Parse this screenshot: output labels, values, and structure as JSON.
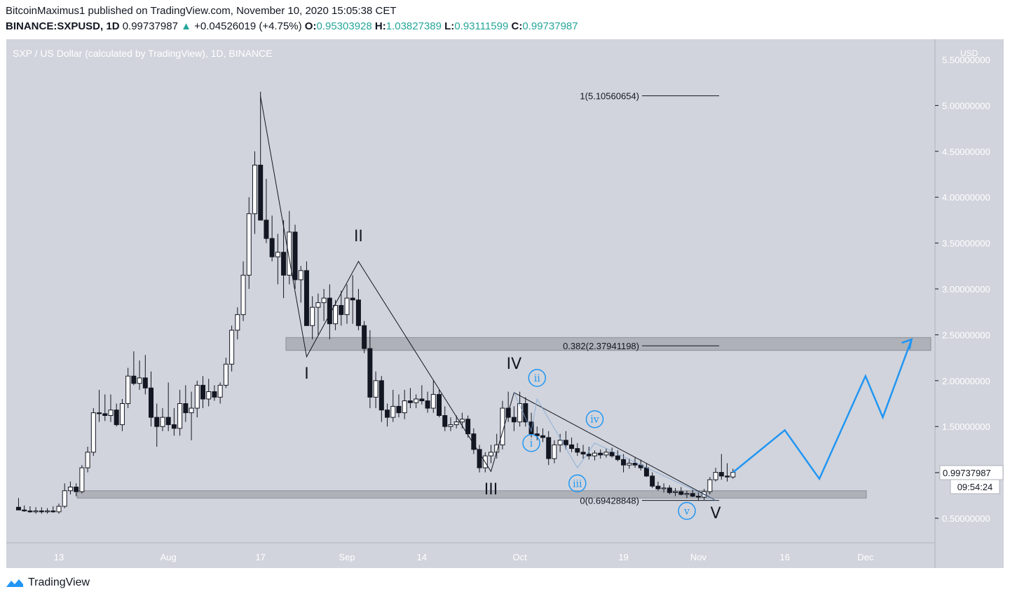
{
  "header": {
    "line1": "BitcoinMaximus1 published on TradingView.com, November 10, 2020 15:05:38 CET",
    "symbol": "BINANCE:SXPUSD, 1D",
    "last": "0.99737987",
    "change": "+0.04526019 (+4.75%)",
    "o_label": "O:",
    "o_value": "0.95303928",
    "h_label": "H:",
    "h_value": "1.03827389",
    "l_label": "L:",
    "l_value": "0.93111599",
    "c_label": "C:",
    "c_value": "0.99737987"
  },
  "footer": {
    "brand": "TradingView",
    "logo_icon": "tradingview-logo-icon"
  },
  "chart_data": {
    "type": "candlestick",
    "title": "SXP / US Dollar (calculated by TradingView), 1D, BINANCE",
    "currency": "USD",
    "y_ticks": [
      "5.00000000",
      "4.50000000",
      "4.00000000",
      "3.50000000",
      "3.00000000",
      "2.50000000",
      "2.00000000",
      "1.50000000",
      "0.50000000"
    ],
    "y_tick_values": [
      5.0,
      4.5,
      4.0,
      3.5,
      3.0,
      2.5,
      2.0,
      1.5,
      0.5
    ],
    "y_top_partial": "5.50000000",
    "ylim": [
      0.22,
      5.55
    ],
    "x_ticks": [
      {
        "label": "13",
        "day": 13
      },
      {
        "label": "Aug",
        "day": 32
      },
      {
        "label": "17",
        "day": 48
      },
      {
        "label": "Sep",
        "day": 63
      },
      {
        "label": "14",
        "day": 76
      },
      {
        "label": "Oct",
        "day": 93
      },
      {
        "label": "19",
        "day": 111
      },
      {
        "label": "Nov",
        "day": 124
      },
      {
        "label": "16",
        "day": 139
      },
      {
        "label": "Dec",
        "day": 153
      }
    ],
    "x_range": [
      4,
      162
    ],
    "date_axis_note_day": "day 1 = Jul 1, 2020",
    "price_label": "0.99737987",
    "price_value": 0.99737987,
    "countdown": "09:54:24",
    "candles": [
      [
        6,
        0.62,
        0.72,
        0.6,
        0.59
      ],
      [
        7,
        0.59,
        0.64,
        0.57,
        0.58
      ],
      [
        8,
        0.58,
        0.63,
        0.56,
        0.57
      ],
      [
        9,
        0.57,
        0.62,
        0.55,
        0.58
      ],
      [
        10,
        0.58,
        0.62,
        0.55,
        0.57
      ],
      [
        11,
        0.57,
        0.61,
        0.55,
        0.58
      ],
      [
        12,
        0.58,
        0.63,
        0.56,
        0.57
      ],
      [
        13,
        0.57,
        0.66,
        0.55,
        0.63
      ],
      [
        14,
        0.63,
        0.88,
        0.61,
        0.8
      ],
      [
        15,
        0.8,
        0.9,
        0.76,
        0.84
      ],
      [
        16,
        0.84,
        0.88,
        0.74,
        0.79
      ],
      [
        17,
        0.79,
        1.08,
        0.77,
        1.05
      ],
      [
        18,
        1.05,
        1.28,
        1.0,
        1.22
      ],
      [
        19,
        1.22,
        1.7,
        1.18,
        1.65
      ],
      [
        20,
        1.65,
        1.9,
        1.55,
        1.64
      ],
      [
        21,
        1.64,
        1.85,
        1.56,
        1.62
      ],
      [
        22,
        1.62,
        1.85,
        1.55,
        1.68
      ],
      [
        23,
        1.68,
        1.75,
        1.5,
        1.52
      ],
      [
        24,
        1.52,
        1.8,
        1.45,
        1.75
      ],
      [
        25,
        1.75,
        2.14,
        1.7,
        2.05
      ],
      [
        26,
        2.05,
        2.32,
        1.95,
        1.97
      ],
      [
        27,
        1.97,
        2.22,
        1.9,
        2.03
      ],
      [
        28,
        2.03,
        2.28,
        1.85,
        1.92
      ],
      [
        29,
        1.92,
        2.1,
        1.5,
        1.6
      ],
      [
        30,
        1.6,
        1.75,
        1.28,
        1.5
      ],
      [
        31,
        1.5,
        1.7,
        1.45,
        1.6
      ],
      [
        32,
        1.6,
        1.98,
        1.45,
        1.52
      ],
      [
        33,
        1.52,
        1.7,
        1.4,
        1.48
      ],
      [
        34,
        1.48,
        1.9,
        1.4,
        1.75
      ],
      [
        35,
        1.75,
        1.95,
        1.55,
        1.65
      ],
      [
        36,
        1.65,
        1.88,
        1.35,
        1.7
      ],
      [
        37,
        1.7,
        2.0,
        1.6,
        1.95
      ],
      [
        38,
        1.95,
        2.05,
        1.7,
        1.8
      ],
      [
        39,
        1.8,
        2.02,
        1.72,
        1.88
      ],
      [
        40,
        1.88,
        1.95,
        1.78,
        1.82
      ],
      [
        41,
        1.82,
        1.98,
        1.75,
        1.95
      ],
      [
        42,
        1.95,
        2.25,
        1.92,
        2.18
      ],
      [
        43,
        2.18,
        2.6,
        2.1,
        2.55
      ],
      [
        44,
        2.55,
        2.8,
        2.45,
        2.72
      ],
      [
        45,
        2.72,
        3.3,
        2.65,
        3.15
      ],
      [
        46,
        3.15,
        4.0,
        3.0,
        3.82
      ],
      [
        47,
        3.82,
        4.5,
        3.6,
        4.35
      ],
      [
        48,
        4.35,
        5.15,
        3.8,
        3.75
      ],
      [
        49,
        3.75,
        4.2,
        3.5,
        3.55
      ],
      [
        50,
        3.55,
        3.8,
        3.3,
        3.35
      ],
      [
        51,
        3.35,
        3.6,
        3.05,
        3.4
      ],
      [
        52,
        3.4,
        3.75,
        2.9,
        3.15
      ],
      [
        53,
        3.15,
        3.85,
        3.05,
        3.62
      ],
      [
        54,
        3.62,
        3.7,
        3.0,
        3.1
      ],
      [
        55,
        3.1,
        3.25,
        2.85,
        3.2
      ],
      [
        56,
        3.2,
        3.3,
        2.6,
        2.6
      ],
      [
        57,
        2.6,
        2.92,
        2.45,
        2.8
      ],
      [
        58,
        2.8,
        2.95,
        2.5,
        2.85
      ],
      [
        59,
        2.85,
        3.0,
        2.65,
        2.9
      ],
      [
        60,
        2.9,
        3.05,
        2.45,
        2.62
      ],
      [
        61,
        2.62,
        2.88,
        2.55,
        2.82
      ],
      [
        62,
        2.82,
        2.98,
        2.6,
        2.72
      ],
      [
        63,
        2.72,
        3.05,
        2.62,
        2.9
      ],
      [
        64,
        2.9,
        3.15,
        2.62,
        2.88
      ],
      [
        65,
        2.88,
        3.0,
        2.55,
        2.6
      ],
      [
        66,
        2.6,
        2.65,
        2.3,
        2.35
      ],
      [
        67,
        2.35,
        2.55,
        1.7,
        1.82
      ],
      [
        68,
        1.82,
        2.1,
        1.7,
        2.0
      ],
      [
        69,
        2.0,
        2.05,
        1.55,
        1.68
      ],
      [
        70,
        1.68,
        1.75,
        1.5,
        1.6
      ],
      [
        71,
        1.6,
        1.9,
        1.55,
        1.72
      ],
      [
        72,
        1.72,
        1.85,
        1.6,
        1.65
      ],
      [
        73,
        1.65,
        1.9,
        1.58,
        1.78
      ],
      [
        74,
        1.78,
        1.92,
        1.7,
        1.76
      ],
      [
        75,
        1.76,
        1.85,
        1.7,
        1.8
      ],
      [
        76,
        1.8,
        1.95,
        1.74,
        1.78
      ],
      [
        77,
        1.78,
        1.88,
        1.65,
        1.7
      ],
      [
        78,
        1.7,
        2.0,
        1.65,
        1.85
      ],
      [
        79,
        1.85,
        1.9,
        1.6,
        1.62
      ],
      [
        80,
        1.62,
        1.72,
        1.45,
        1.5
      ],
      [
        81,
        1.5,
        1.6,
        1.45,
        1.52
      ],
      [
        82,
        1.52,
        1.62,
        1.48,
        1.55
      ],
      [
        83,
        1.55,
        1.65,
        1.48,
        1.58
      ],
      [
        84,
        1.58,
        1.62,
        1.38,
        1.42
      ],
      [
        85,
        1.42,
        1.48,
        1.2,
        1.25
      ],
      [
        86,
        1.25,
        1.3,
        1.0,
        1.05
      ],
      [
        87,
        1.05,
        1.22,
        1.0,
        1.18
      ],
      [
        88,
        1.18,
        1.3,
        1.1,
        1.22
      ],
      [
        89,
        1.22,
        1.42,
        1.15,
        1.3
      ],
      [
        90,
        1.3,
        1.78,
        1.25,
        1.7
      ],
      [
        91,
        1.7,
        1.88,
        1.55,
        1.6
      ],
      [
        92,
        1.6,
        1.72,
        1.45,
        1.55
      ],
      [
        93,
        1.55,
        1.88,
        1.5,
        1.75
      ],
      [
        94,
        1.75,
        1.82,
        1.5,
        1.55
      ],
      [
        95,
        1.55,
        1.65,
        1.38,
        1.42
      ],
      [
        96,
        1.42,
        1.5,
        1.35,
        1.4
      ],
      [
        97,
        1.4,
        1.48,
        1.33,
        1.38
      ],
      [
        98,
        1.38,
        1.45,
        1.08,
        1.15
      ],
      [
        99,
        1.15,
        1.35,
        1.1,
        1.3
      ],
      [
        100,
        1.3,
        1.42,
        1.22,
        1.35
      ],
      [
        101,
        1.35,
        1.45,
        1.25,
        1.3
      ],
      [
        102,
        1.3,
        1.38,
        1.22,
        1.26
      ],
      [
        103,
        1.26,
        1.32,
        1.18,
        1.22
      ],
      [
        104,
        1.22,
        1.3,
        1.15,
        1.2
      ],
      [
        105,
        1.2,
        1.28,
        1.14,
        1.18
      ],
      [
        106,
        1.18,
        1.24,
        1.13,
        1.21
      ],
      [
        107,
        1.21,
        1.25,
        1.15,
        1.19
      ],
      [
        108,
        1.19,
        1.26,
        1.16,
        1.22
      ],
      [
        109,
        1.22,
        1.27,
        1.16,
        1.18
      ],
      [
        110,
        1.18,
        1.24,
        1.12,
        1.14
      ],
      [
        111,
        1.14,
        1.2,
        1.0,
        1.08
      ],
      [
        112,
        1.08,
        1.15,
        1.04,
        1.1
      ],
      [
        113,
        1.1,
        1.16,
        1.05,
        1.08
      ],
      [
        114,
        1.08,
        1.14,
        1.02,
        1.05
      ],
      [
        115,
        1.05,
        1.1,
        0.95,
        0.96
      ],
      [
        116,
        0.96,
        1.0,
        0.83,
        0.85
      ],
      [
        117,
        0.85,
        0.9,
        0.8,
        0.82
      ],
      [
        118,
        0.82,
        0.88,
        0.78,
        0.83
      ],
      [
        119,
        0.83,
        0.86,
        0.76,
        0.78
      ],
      [
        120,
        0.78,
        0.83,
        0.74,
        0.79
      ],
      [
        121,
        0.79,
        0.84,
        0.75,
        0.76
      ],
      [
        122,
        0.76,
        0.8,
        0.72,
        0.77
      ],
      [
        123,
        0.77,
        0.81,
        0.73,
        0.74
      ],
      [
        124,
        0.74,
        0.78,
        0.69,
        0.73
      ],
      [
        125,
        0.73,
        0.82,
        0.7,
        0.79
      ],
      [
        126,
        0.79,
        0.95,
        0.76,
        0.92
      ],
      [
        127,
        0.92,
        1.05,
        0.9,
        1.0
      ],
      [
        128,
        1.0,
        1.2,
        0.92,
        0.96
      ],
      [
        129,
        0.96,
        1.1,
        0.9,
        0.95
      ],
      [
        130,
        0.95,
        1.04,
        0.93,
        1.0
      ]
    ],
    "fib_levels": [
      {
        "label": "1(5.10560654)",
        "value": 5.10560654
      },
      {
        "label": "0.382(2.37941198)",
        "value": 2.37941198
      },
      {
        "label": "0(0.69428848)",
        "value": 0.69428848
      }
    ],
    "zones": [
      {
        "name": "resistance-zone",
        "from": 2.33,
        "to": 2.47
      },
      {
        "name": "support-zone",
        "from": 0.72,
        "to": 0.8
      }
    ],
    "wave_labels": [
      {
        "text": "I",
        "day": 56,
        "value": 2.02
      },
      {
        "text": "II",
        "day": 65,
        "value": 3.52
      },
      {
        "text": "III",
        "day": 88,
        "value": 0.76
      },
      {
        "text": "IV",
        "day": 92,
        "value": 2.13
      },
      {
        "text": "V",
        "day": 127,
        "value": 0.5
      }
    ],
    "sub_wave_labels": [
      {
        "text": "i",
        "day": 95,
        "value": 1.32
      },
      {
        "text": "ii",
        "day": 96,
        "value": 2.03
      },
      {
        "text": "iii",
        "day": 103,
        "value": 0.88
      },
      {
        "text": "iv",
        "day": 106,
        "value": 1.58
      },
      {
        "text": "v",
        "day": 122,
        "value": 0.58
      }
    ],
    "wave_path": [
      [
        48,
        5.1
      ],
      [
        56,
        2.26
      ],
      [
        65,
        3.3
      ],
      [
        88,
        1.01
      ],
      [
        92,
        1.87
      ],
      [
        127,
        0.694
      ]
    ],
    "projection_path": [
      [
        130,
        1.0
      ],
      [
        139,
        1.46
      ],
      [
        145,
        0.93
      ],
      [
        153,
        2.05
      ],
      [
        156,
        1.6
      ],
      [
        161,
        2.45
      ]
    ],
    "colors": {
      "background": "#d1d4dc",
      "up_body": "#ffffff",
      "down_body": "#131722",
      "projection": "#2196f3",
      "zone": "#a9aab2",
      "change_up": "#26a69a"
    }
  }
}
